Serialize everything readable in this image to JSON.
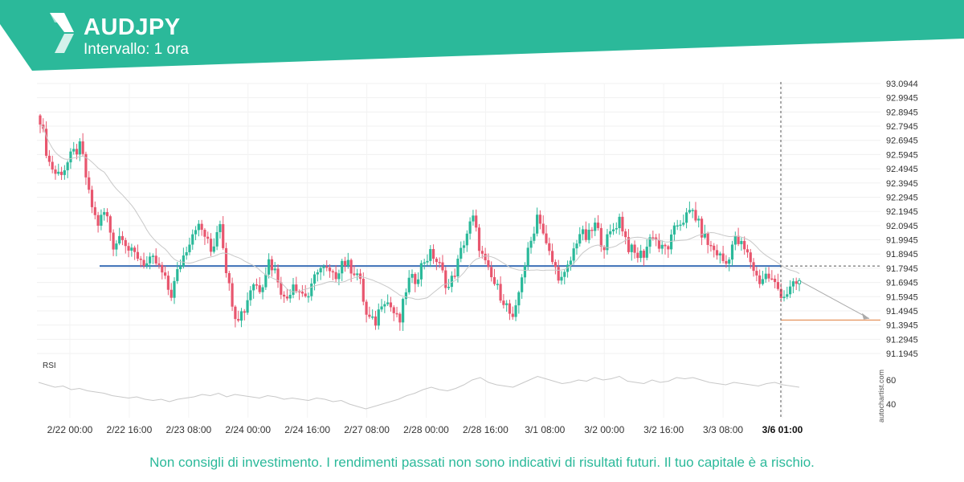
{
  "header": {
    "symbol": "AUDJPY",
    "interval": "Intervallo: 1 ora"
  },
  "footer": {
    "disclaimer": "Non consigli di investimento. I rendimenti passati non sono indicativi di risultati futuri. Il tuo capitale è a rischio."
  },
  "watermark": "autochartist.com",
  "colors": {
    "brand": "#2bb99a",
    "bull": "#2bb99a",
    "bear": "#e8566e",
    "support_line": "#3b6fb6",
    "target_line": "#e07b39",
    "moving_average": "#c8c8c8",
    "rsi": "#c8c8c8"
  },
  "chart_data": {
    "type": "candlestick",
    "y_ticks": [
      "93.0944",
      "92.9945",
      "92.8945",
      "92.7945",
      "92.6945",
      "92.5945",
      "92.4945",
      "92.3945",
      "92.2945",
      "92.1945",
      "92.0945",
      "91.9945",
      "91.8945",
      "91.7945",
      "91.6945",
      "91.5945",
      "91.4945",
      "91.3945",
      "91.2945",
      "91.1945"
    ],
    "ylim": [
      91.1945,
      93.0944
    ],
    "x_ticks": [
      "2/22 00:00",
      "2/22 16:00",
      "2/23 08:00",
      "2/24 00:00",
      "2/24 16:00",
      "2/27 08:00",
      "2/28 00:00",
      "2/28 16:00",
      "3/1 08:00",
      "3/2 00:00",
      "3/2 16:00",
      "3/3 08:00",
      "3/6 01:00"
    ],
    "highlighted_x_tick": "3/6 01:00",
    "support_level": 91.81,
    "target_level": 91.43,
    "price_path": [
      92.85,
      92.55,
      92.45,
      92.5,
      92.6,
      92.65,
      92.3,
      92.1,
      92.2,
      91.95,
      92.05,
      91.9,
      91.88,
      91.82,
      91.85,
      91.75,
      91.6,
      91.8,
      91.95,
      92.1,
      92.05,
      91.9,
      92.15,
      91.7,
      91.45,
      91.5,
      91.7,
      91.65,
      91.85,
      91.75,
      91.55,
      91.7,
      91.62,
      91.6,
      91.8,
      91.78,
      91.72,
      91.85,
      91.8,
      91.75,
      91.45,
      91.4,
      91.6,
      91.52,
      91.4,
      91.7,
      91.72,
      91.85,
      91.9,
      91.8,
      91.65,
      91.8,
      92.0,
      92.15,
      91.9,
      91.75,
      91.65,
      91.55,
      91.4,
      91.75,
      91.95,
      92.2,
      91.95,
      91.8,
      91.7,
      91.85,
      92.05,
      92.0,
      92.1,
      91.95,
      92.05,
      92.15,
      91.95,
      91.88,
      91.9,
      92.05,
      91.92,
      91.95,
      92.1,
      92.15,
      92.2,
      92.05,
      91.95,
      91.9,
      91.82,
      92.0,
      91.95,
      91.85,
      91.7,
      91.75,
      91.68,
      91.6,
      91.65,
      91.7
    ],
    "indicator": {
      "name": "RSI",
      "y_ticks": [
        "60",
        "40"
      ],
      "ylim": [
        30,
        70
      ],
      "values": [
        58,
        56,
        54,
        55,
        52,
        53,
        51,
        50,
        49,
        47,
        46,
        45,
        46,
        44,
        43,
        44,
        42,
        44,
        45,
        46,
        48,
        47,
        49,
        46,
        48,
        47,
        46,
        45,
        47,
        46,
        44,
        45,
        44,
        43,
        45,
        44,
        42,
        43,
        40,
        38,
        36,
        38,
        40,
        42,
        44,
        47,
        49,
        52,
        54,
        52,
        51,
        53,
        56,
        60,
        62,
        58,
        56,
        55,
        54,
        57,
        60,
        63,
        61,
        59,
        57,
        58,
        60,
        59,
        62,
        60,
        61,
        63,
        59,
        58,
        57,
        60,
        58,
        59,
        62,
        61,
        62,
        60,
        58,
        57,
        56,
        58,
        57,
        56,
        55,
        57,
        58,
        56,
        55,
        54
      ]
    },
    "projection": {
      "from_index": 93,
      "to_level": 91.44
    }
  }
}
